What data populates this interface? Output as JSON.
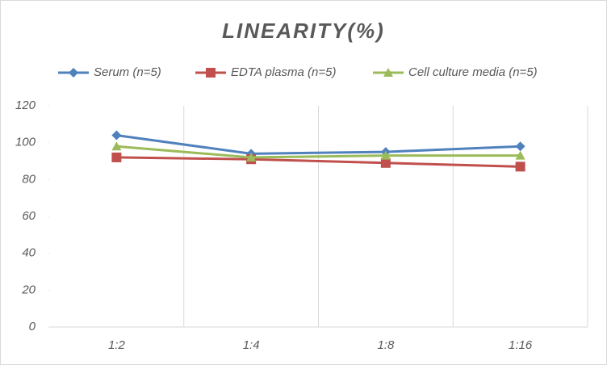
{
  "chart_data": {
    "type": "line",
    "title": "LINEARITY(%)",
    "categories": [
      "1:2",
      "1:4",
      "1:8",
      "1:16"
    ],
    "series": [
      {
        "name": "Serum (n=5)",
        "color": "#4f81bd",
        "marker": "diamond",
        "values": [
          104,
          94,
          95,
          98
        ]
      },
      {
        "name": "EDTA plasma (n=5)",
        "color": "#c0504d",
        "marker": "square",
        "values": [
          92,
          91,
          89,
          87
        ]
      },
      {
        "name": "Cell culture media (n=5)",
        "color": "#9bbb59",
        "marker": "triangle",
        "values": [
          98,
          92,
          93,
          93
        ]
      }
    ],
    "ylim": [
      0,
      120
    ],
    "yticks": [
      0,
      20,
      40,
      60,
      80,
      100,
      120
    ]
  }
}
